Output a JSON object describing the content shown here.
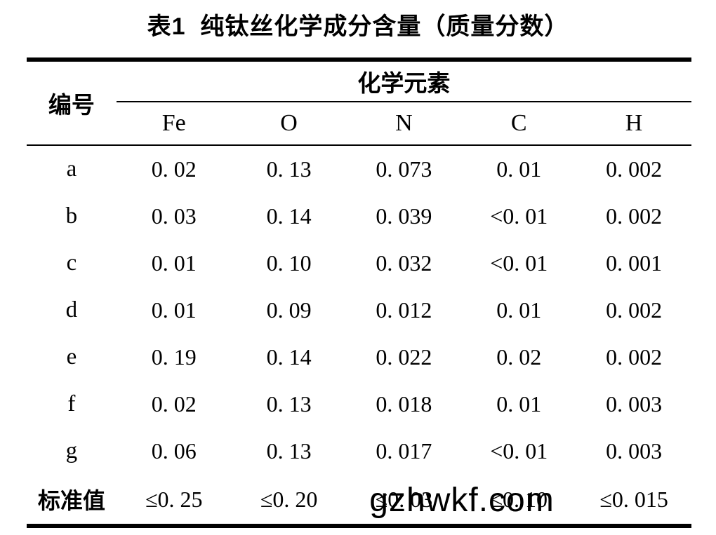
{
  "title": "表1  纯钛丝化学成分含量（质量分数）",
  "watermark": "gzhwkf.com",
  "table": {
    "corner_header": "编号",
    "group_header": "化学元素",
    "columns": [
      "Fe",
      "O",
      "N",
      "C",
      "H"
    ],
    "rows": [
      {
        "label": "a",
        "cells": [
          "0. 02",
          "0. 13",
          "0. 073",
          "0. 01",
          "0. 002"
        ]
      },
      {
        "label": "b",
        "cells": [
          "0. 03",
          "0. 14",
          "0. 039",
          "<0. 01",
          "0. 002"
        ]
      },
      {
        "label": "c",
        "cells": [
          "0. 01",
          "0. 10",
          "0. 032",
          "<0. 01",
          "0. 001"
        ]
      },
      {
        "label": "d",
        "cells": [
          "0. 01",
          "0. 09",
          "0. 012",
          "0. 01",
          "0. 002"
        ]
      },
      {
        "label": "e",
        "cells": [
          "0. 19",
          "0. 14",
          "0. 022",
          "0. 02",
          "0. 002"
        ]
      },
      {
        "label": "f",
        "cells": [
          "0. 02",
          "0. 13",
          "0. 018",
          "0. 01",
          "0. 003"
        ]
      },
      {
        "label": "g",
        "cells": [
          "0. 06",
          "0. 13",
          "0. 017",
          "<0. 01",
          "0. 003"
        ]
      },
      {
        "label": "标准值",
        "cells": [
          "≤0. 25",
          "≤0. 20",
          "≤0. 03",
          "≤0. 10",
          "≤0. 015"
        ]
      }
    ]
  },
  "chart_data": {
    "type": "table",
    "title": "表1 纯钛丝化学成分含量（质量分数）",
    "row_header": "编号",
    "column_group": "化学元素",
    "columns": [
      "Fe",
      "O",
      "N",
      "C",
      "H"
    ],
    "rows": [
      [
        "a",
        "0.02",
        "0.13",
        "0.073",
        "0.01",
        "0.002"
      ],
      [
        "b",
        "0.03",
        "0.14",
        "0.039",
        "<0.01",
        "0.002"
      ],
      [
        "c",
        "0.01",
        "0.10",
        "0.032",
        "<0.01",
        "0.001"
      ],
      [
        "d",
        "0.01",
        "0.09",
        "0.012",
        "0.01",
        "0.002"
      ],
      [
        "e",
        "0.19",
        "0.14",
        "0.022",
        "0.02",
        "0.002"
      ],
      [
        "f",
        "0.02",
        "0.13",
        "0.018",
        "0.01",
        "0.003"
      ],
      [
        "g",
        "0.06",
        "0.13",
        "0.017",
        "<0.01",
        "0.003"
      ],
      [
        "标准值",
        "≤0.25",
        "≤0.20",
        "≤0.03",
        "≤0.10",
        "≤0.015"
      ]
    ]
  }
}
